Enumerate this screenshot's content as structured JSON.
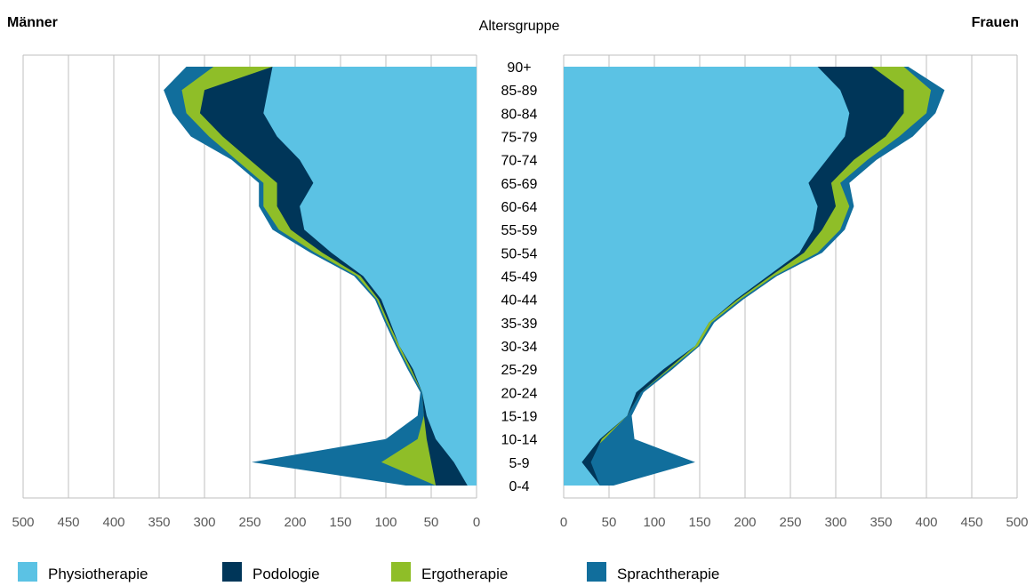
{
  "chart_data": {
    "type": "area",
    "title": "",
    "left_panel_label": "Männer",
    "center_label": "Altersgruppe",
    "right_panel_label": "Frauen",
    "age_groups": [
      "0-4",
      "5-9",
      "10-14",
      "15-19",
      "20-24",
      "25-29",
      "30-34",
      "35-39",
      "40-44",
      "45-49",
      "50-54",
      "55-59",
      "60-64",
      "65-69",
      "70-74",
      "75-79",
      "80-84",
      "85-89",
      "90+"
    ],
    "axis_ticks": [
      0,
      50,
      100,
      150,
      200,
      250,
      300,
      350,
      400,
      450,
      500
    ],
    "xlim": [
      0,
      500
    ],
    "stacking": "cumulative",
    "grid": true,
    "legend_position": "bottom",
    "series": [
      {
        "name": "Physiotherapie",
        "color": "#5bc2e4",
        "men": [
          10,
          25,
          45,
          55,
          60,
          70,
          85,
          95,
          105,
          125,
          160,
          190,
          195,
          180,
          195,
          220,
          235,
          230,
          225
        ],
        "women": [
          40,
          20,
          40,
          70,
          80,
          110,
          145,
          160,
          190,
          225,
          260,
          275,
          280,
          270,
          290,
          310,
          315,
          305,
          280
        ]
      },
      {
        "name": "Podologie",
        "color": "#003659",
        "men": [
          45,
          50,
          55,
          58,
          60,
          72,
          85,
          97,
          108,
          128,
          170,
          205,
          220,
          220,
          250,
          280,
          305,
          300,
          225
        ],
        "women": [
          40,
          30,
          42,
          70,
          85,
          115,
          145,
          160,
          192,
          228,
          265,
          285,
          300,
          295,
          320,
          355,
          375,
          375,
          340
        ]
      },
      {
        "name": "Ergotherapie",
        "color": "#8fbe28",
        "men": [
          45,
          105,
          65,
          58,
          60,
          74,
          87,
          99,
          110,
          132,
          178,
          218,
          235,
          235,
          265,
          295,
          320,
          325,
          290
        ],
        "women": [
          40,
          18,
          45,
          70,
          85,
          117,
          148,
          163,
          195,
          232,
          280,
          305,
          315,
          305,
          335,
          370,
          400,
          405,
          375
        ]
      },
      {
        "name": "Sprachtherapie",
        "color": "#116e9c",
        "men": [
          78,
          248,
          100,
          65,
          62,
          76,
          89,
          101,
          112,
          135,
          183,
          225,
          240,
          240,
          270,
          315,
          335,
          345,
          320
        ],
        "women": [
          55,
          145,
          78,
          75,
          88,
          120,
          150,
          166,
          198,
          235,
          285,
          310,
          320,
          315,
          345,
          385,
          410,
          420,
          380
        ]
      }
    ]
  }
}
